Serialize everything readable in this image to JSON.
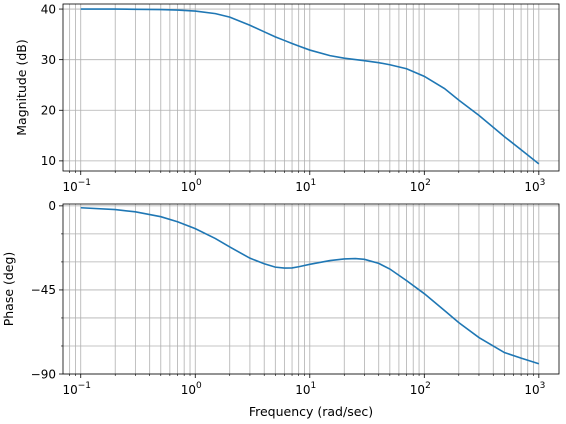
{
  "chart_data": [
    {
      "type": "line",
      "xscale": "log",
      "xlim": [
        0.07,
        1500
      ],
      "ylim": [
        8,
        41
      ],
      "ylabel": "Magnitude (dB)",
      "xlabel": "",
      "grid": true,
      "y_ticks": [
        10,
        20,
        30,
        40
      ],
      "x_ticks": [
        "10^-1",
        "10^0",
        "10^1",
        "10^2",
        "10^3"
      ],
      "series": [
        {
          "color": "#1f77b4",
          "x": [
            0.1,
            0.2,
            0.3,
            0.5,
            0.7,
            1,
            1.5,
            2,
            3,
            4,
            5,
            6,
            7,
            8,
            10,
            15,
            20,
            30,
            40,
            50,
            70,
            100,
            150,
            200,
            300,
            500,
            700,
            1000
          ],
          "y": [
            40.0,
            40.0,
            39.95,
            39.9,
            39.8,
            39.6,
            39.1,
            38.4,
            36.8,
            35.5,
            34.5,
            33.8,
            33.2,
            32.7,
            31.9,
            30.8,
            30.3,
            29.8,
            29.4,
            29.0,
            28.2,
            26.7,
            24.3,
            22.0,
            19.0,
            14.8,
            12.2,
            9.4
          ]
        }
      ]
    },
    {
      "type": "line",
      "xscale": "log",
      "xlim": [
        0.07,
        1500
      ],
      "ylim": [
        -90,
        1
      ],
      "ylabel": "Phase (deg)",
      "xlabel": "Frequency (rad/sec)",
      "grid": true,
      "y_ticks": [
        0,
        -45,
        -90
      ],
      "x_ticks": [
        "10^-1",
        "10^0",
        "10^1",
        "10^2",
        "10^3"
      ],
      "series": [
        {
          "color": "#1f77b4",
          "x": [
            0.1,
            0.2,
            0.3,
            0.5,
            0.7,
            1,
            1.5,
            2,
            3,
            4,
            5,
            6,
            7,
            8,
            10,
            15,
            20,
            25,
            30,
            40,
            50,
            70,
            100,
            150,
            200,
            300,
            500,
            700,
            1000
          ],
          "y": [
            -1.0,
            -2.0,
            -3.2,
            -5.8,
            -8.5,
            -12.2,
            -17.5,
            -22.0,
            -28.0,
            -31.0,
            -32.8,
            -33.3,
            -33.2,
            -32.6,
            -31.3,
            -29.3,
            -28.4,
            -28.2,
            -28.6,
            -30.8,
            -33.8,
            -40.0,
            -47.0,
            -56.0,
            -62.5,
            -70.5,
            -78.5,
            -81.5,
            -84.5
          ]
        }
      ]
    }
  ]
}
